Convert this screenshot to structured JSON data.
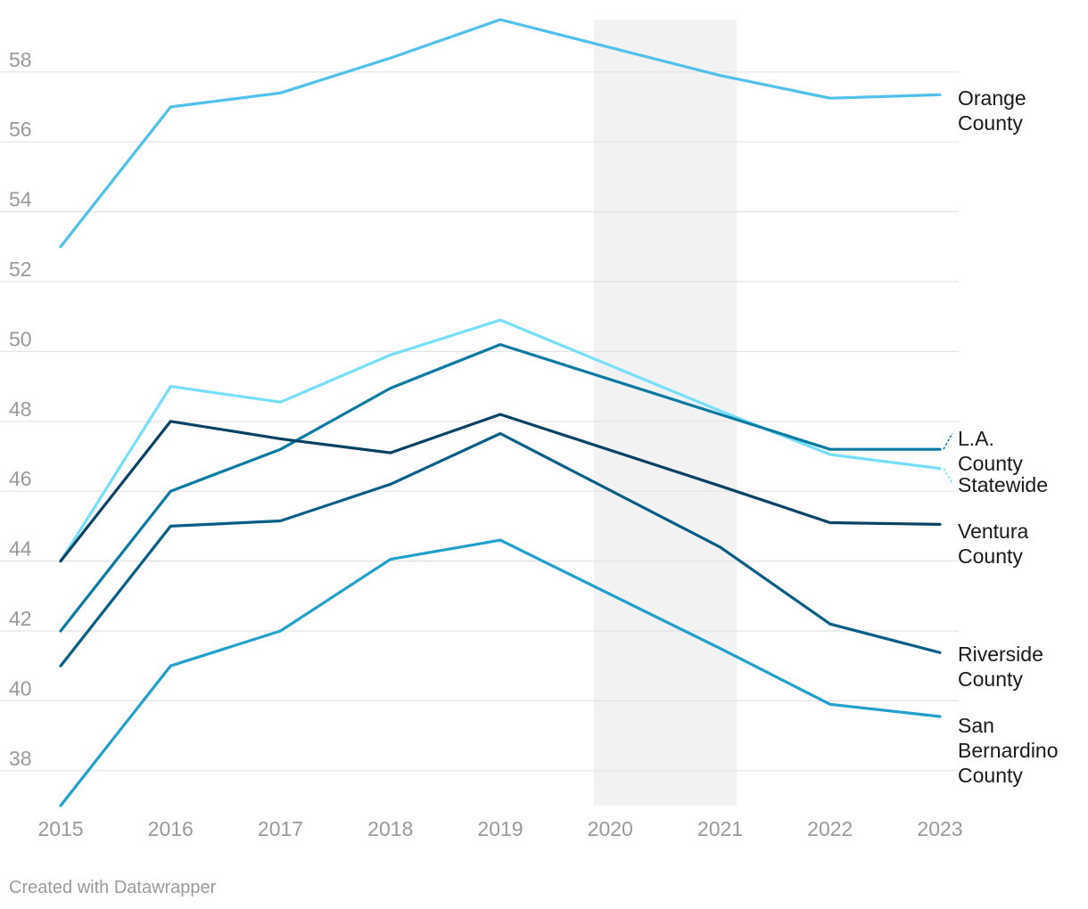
{
  "chart_data": {
    "type": "line",
    "x": [
      2015,
      2016,
      2017,
      2018,
      2019,
      2020,
      2021,
      2022,
      2023
    ],
    "x_tick_labels": [
      "2015",
      "2016",
      "2017",
      "2018",
      "2019",
      "2020",
      "2021",
      "2022",
      "2023"
    ],
    "y_ticks": [
      38,
      40,
      42,
      44,
      46,
      48,
      50,
      52,
      54,
      56,
      58
    ],
    "y_tick_labels": [
      "38",
      "40",
      "42",
      "44",
      "46",
      "48",
      "50",
      "52",
      "54",
      "56",
      "58"
    ],
    "xlim": [
      2015,
      2023
    ],
    "ylim": [
      37,
      59.5
    ],
    "grid": true,
    "highlight_range": [
      2019.85,
      2021.15
    ],
    "series": [
      {
        "id": "orange",
        "name": "Orange County",
        "label_lines": [
          "Orange",
          "County"
        ],
        "color": "#4fc1ea",
        "points": [
          [
            2015,
            53.0
          ],
          [
            2016,
            57.0
          ],
          [
            2017,
            57.4
          ],
          [
            2018,
            58.4
          ],
          [
            2019,
            59.5
          ],
          [
            2021,
            57.9
          ],
          [
            2022,
            57.25
          ],
          [
            2023,
            57.35
          ]
        ]
      },
      {
        "id": "statewide",
        "name": "Statewide",
        "label_lines": [
          "Statewide"
        ],
        "color": "#76e0fb",
        "points": [
          [
            2015,
            44.0
          ],
          [
            2016,
            49.0
          ],
          [
            2017,
            48.55
          ],
          [
            2018,
            49.9
          ],
          [
            2019,
            50.9
          ],
          [
            2021,
            48.3
          ],
          [
            2022,
            47.05
          ],
          [
            2023,
            46.65
          ]
        ]
      },
      {
        "id": "la",
        "name": "L.A. County",
        "label_lines": [
          "L.A.",
          "County"
        ],
        "color": "#0b7aa2",
        "points": [
          [
            2015,
            42.0
          ],
          [
            2016,
            46.0
          ],
          [
            2017,
            47.2
          ],
          [
            2018,
            48.95
          ],
          [
            2019,
            50.2
          ],
          [
            2021,
            48.2
          ],
          [
            2022,
            47.2
          ],
          [
            2023,
            47.2
          ]
        ]
      },
      {
        "id": "ventura",
        "name": "Ventura County",
        "label_lines": [
          "Ventura",
          "County"
        ],
        "color": "#074164",
        "points": [
          [
            2015,
            44.0
          ],
          [
            2016,
            48.0
          ],
          [
            2017,
            47.5
          ],
          [
            2018,
            47.1
          ],
          [
            2019,
            48.2
          ],
          [
            2021,
            46.15
          ],
          [
            2022,
            45.1
          ],
          [
            2023,
            45.05
          ]
        ]
      },
      {
        "id": "riverside",
        "name": "Riverside County",
        "label_lines": [
          "Riverside",
          "County"
        ],
        "color": "#065e86",
        "points": [
          [
            2015,
            41.0
          ],
          [
            2016,
            45.0
          ],
          [
            2017,
            45.15
          ],
          [
            2018,
            46.2
          ],
          [
            2019,
            47.65
          ],
          [
            2021,
            44.4
          ],
          [
            2022,
            42.2
          ],
          [
            2023,
            41.38
          ]
        ]
      },
      {
        "id": "sanbernardino",
        "name": "San Bernardino County",
        "label_lines": [
          "San",
          "Bernardino",
          "County"
        ],
        "color": "#20a0ca",
        "points": [
          [
            2015,
            37.0
          ],
          [
            2016,
            41.0
          ],
          [
            2017,
            42.0
          ],
          [
            2018,
            44.05
          ],
          [
            2019,
            44.6
          ],
          [
            2021,
            41.5
          ],
          [
            2022,
            39.9
          ],
          [
            2023,
            39.55
          ]
        ]
      }
    ]
  },
  "footer": {
    "credit": "Created with Datawrapper"
  }
}
